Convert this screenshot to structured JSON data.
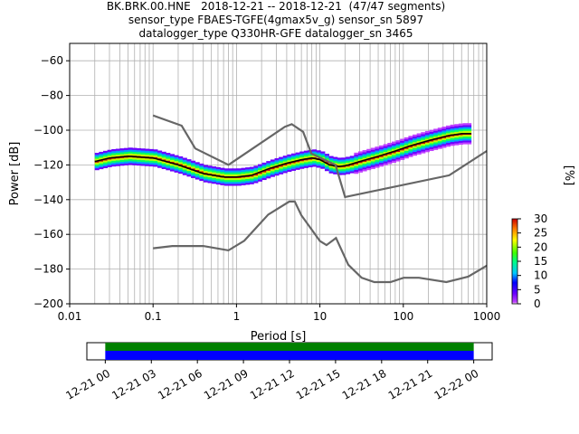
{
  "title_lines": [
    "BK.BRK.00.HNE   2018-12-21 -- 2018-12-21  (47/47 segments)",
    "sensor_type FBAES-TGFE(4gmax5v_g) sensor_sn 5897",
    "datalogger_type Q330HR-GFE datalogger_sn 3465"
  ],
  "chart_data": [
    {
      "type": "heatmap",
      "title": "BK.BRK.00.HNE   2018-12-21 -- 2018-12-21  (47/47 segments)",
      "xlabel": "Period [s]",
      "ylabel": "Power [dB]",
      "xscale": "log",
      "xlim": [
        0.01,
        1000
      ],
      "ylim": [
        -200,
        -50
      ],
      "x_ticks": [
        "0.01",
        "0.1",
        "1",
        "10",
        "100",
        "1000"
      ],
      "y_ticks": [
        "−200",
        "−180",
        "−160",
        "−140",
        "−120",
        "−100",
        "−80",
        "−60"
      ],
      "grid": true,
      "colorbar": {
        "label": "[%]",
        "range": [
          0,
          30
        ],
        "ticks": [
          "0",
          "5",
          "10",
          "15",
          "20",
          "25",
          "30"
        ]
      },
      "series": [
        {
          "role": "mean",
          "color": "#000000",
          "x": [
            0.02,
            0.03,
            0.05,
            0.1,
            0.2,
            0.4,
            0.7,
            1.0,
            1.5,
            2.5,
            4.0,
            6.0,
            8.0,
            10,
            13,
            17,
            22,
            30,
            50,
            80,
            120,
            200,
            350,
            500,
            650
          ],
          "y": [
            -118,
            -116,
            -115,
            -116,
            -120,
            -125,
            -127,
            -127,
            -126,
            -122,
            -119,
            -117,
            -116,
            -117,
            -120,
            -121,
            -120,
            -118,
            -115,
            -112,
            -109,
            -106,
            -103,
            -102,
            -102
          ]
        },
        {
          "role": "high noise model",
          "color": "#666666",
          "x": [
            0.1,
            0.22,
            0.32,
            0.8,
            3.8,
            4.6,
            6.3,
            7.9,
            15.4,
            20,
            354.8,
            1000
          ],
          "y": [
            -91.5,
            -97.4,
            -110.5,
            -120,
            -98,
            -96.5,
            -101,
            -113.5,
            -120,
            -138.5,
            -126,
            -112
          ]
        },
        {
          "role": "low noise model",
          "color": "#666666",
          "x": [
            0.1,
            0.17,
            0.4,
            0.8,
            1.24,
            2.4,
            4.3,
            5.0,
            6.0,
            10,
            12,
            15.6,
            21.9,
            31.6,
            45,
            70,
            101,
            154,
            328,
            600,
            1000
          ],
          "y": [
            -168,
            -166.7,
            -166.7,
            -169.2,
            -163.7,
            -148.6,
            -141.1,
            -141.1,
            -149,
            -163.8,
            -166.2,
            -162.1,
            -177.5,
            -185,
            -187.5,
            -187.5,
            -185,
            -185,
            -187.5,
            -184.4,
            -178
          ]
        }
      ]
    },
    {
      "type": "bar",
      "title": "",
      "xlabel": "",
      "ylabel": "",
      "x_ticks": [
        "12-21 00",
        "12-21 03",
        "12-21 06",
        "12-21 09",
        "12-21 12",
        "12-21 15",
        "12-21 18",
        "12-21 21",
        "12-22 00"
      ],
      "xlim_hours": [
        -1.2,
        25.2
      ],
      "coverage_hours": [
        0,
        24
      ],
      "colors": {
        "data": "#0000ff",
        "psd": "#008000"
      }
    }
  ]
}
